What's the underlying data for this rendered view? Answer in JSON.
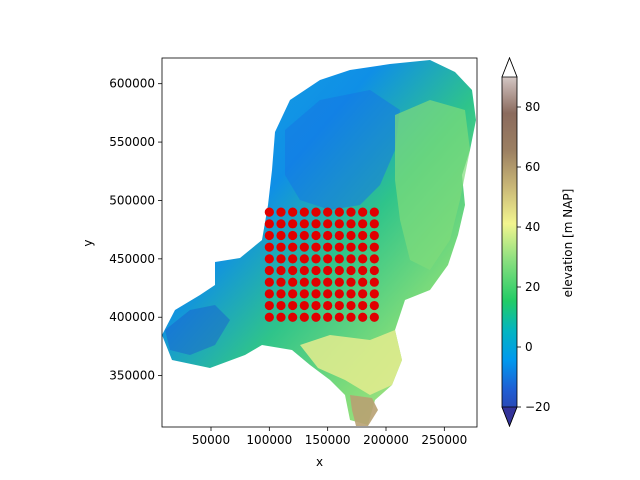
{
  "chart_data": {
    "type": "scatter",
    "title": "",
    "xlabel": "x",
    "ylabel": "y",
    "xlim": [
      8000,
      278000
    ],
    "ylim": [
      306000,
      622000
    ],
    "xticks": [
      50000,
      100000,
      150000,
      200000,
      250000
    ],
    "xtick_labels": [
      "50000",
      "100000",
      "150000",
      "200000",
      "250000"
    ],
    "yticks": [
      350000,
      400000,
      450000,
      500000,
      550000,
      600000
    ],
    "ytick_labels": [
      "350000",
      "400000",
      "450000",
      "500000",
      "550000",
      "600000"
    ],
    "background_field": {
      "description_type": "map-raster",
      "colormap": "terrain",
      "vmin": -20,
      "vmax": 90,
      "extend": "both"
    },
    "colorbar": {
      "label": "elevation [m NAP]",
      "ticks": [
        -20,
        0,
        20,
        40,
        60,
        80
      ],
      "tick_labels": [
        "−20",
        "0",
        "20",
        "40",
        "60",
        "80"
      ]
    },
    "points": {
      "color": "#e00000",
      "x": [
        100000,
        110000,
        120000,
        130000,
        140000,
        150000,
        160000,
        170000,
        180000,
        190000
      ],
      "y": [
        400000,
        410000,
        420000,
        430000,
        440000,
        450000,
        460000,
        470000,
        480000,
        490000
      ]
    }
  }
}
